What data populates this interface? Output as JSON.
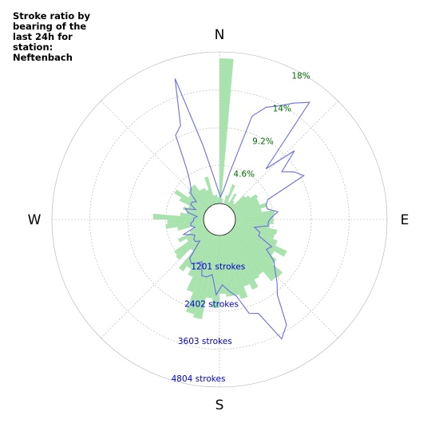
{
  "title": "Stroke ratio by bearing of the last 24h for station: Neftenbach",
  "colors": {
    "bars": "#a8e2ad",
    "line": "#6b6bea",
    "grid": "#b0b0b0",
    "ratio_text": "#007000",
    "count_text": "#0000cc"
  },
  "chart_data": {
    "type": "polar",
    "title": "Stroke ratio by bearing of the last 24h for station: Neftenbach",
    "directions": [
      "N",
      "E",
      "S",
      "W"
    ],
    "grid": true,
    "ratio_ticks": [
      "4.6%",
      "9.2%",
      "14%",
      "18%"
    ],
    "count_ticks": [
      "1201 strokes",
      "2402 strokes",
      "3603 strokes",
      "4804 strokes"
    ],
    "count_max": 4804,
    "ratio_max": 23,
    "bin_width_deg": 5,
    "stroke_counts": [
      4600,
      160,
      0,
      300,
      680,
      130,
      450,
      230,
      170,
      570,
      680,
      900,
      850,
      850,
      1050,
      850,
      1250,
      1200,
      1200,
      1100,
      1350,
      1300,
      1450,
      1850,
      1500,
      1700,
      2100,
      2050,
      1650,
      1700,
      1950,
      1750,
      2100,
      1950,
      1950,
      1850,
      2300,
      2000,
      2700,
      2600,
      1950,
      1500,
      1300,
      1500,
      800,
      1300,
      1250,
      700,
      950,
      500,
      350,
      850,
      1200,
      1150,
      1600,
      750,
      550,
      700,
      550,
      900,
      1150,
      700,
      800,
      850,
      850,
      600,
      600,
      500,
      900,
      280,
      280,
      200
    ],
    "stroke_ratio_percent": [
      1.0,
      2.0,
      5.0,
      14.0,
      16.0,
      17.0,
      18.5,
      20.0,
      8.0,
      13.0,
      9.5,
      11.0,
      12.0,
      5.5,
      5.0,
      5.0,
      6.5,
      5.5,
      5.0,
      5.0,
      3.0,
      4.0,
      4.0,
      6.5,
      6.0,
      8.0,
      9.0,
      10.5,
      12.0,
      16.5,
      18.0,
      13.0,
      12.5,
      9.5,
      8.5,
      7.5,
      9.0,
      6.0,
      6.5,
      6.5,
      4.5,
      5.0,
      5.5,
      5.0,
      2.0,
      2.5,
      2.5,
      2.0,
      2.5,
      3.5,
      1.5,
      2.0,
      2.0,
      1.5,
      1.5,
      1.0,
      2.5,
      3.0,
      1.5,
      2.5,
      2.5,
      2.0,
      3.5,
      4.0,
      5.0,
      7.0,
      12.0,
      13.0,
      20.0,
      9.0,
      4.0,
      2.0
    ]
  }
}
